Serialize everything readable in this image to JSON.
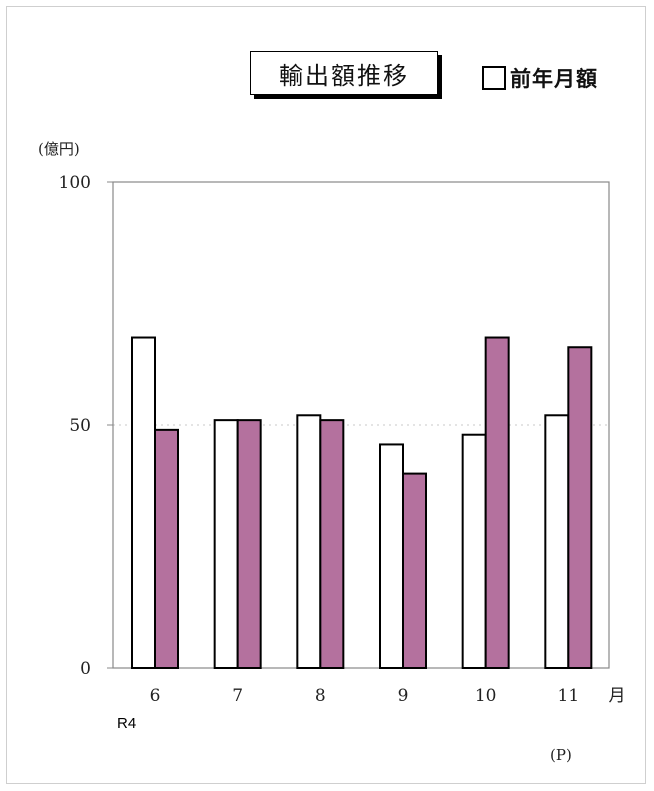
{
  "chart_data": {
    "type": "bar",
    "title": "輸出額推移",
    "ylabel": "(億円)",
    "xlabel_suffix": "月",
    "x_note": "R4",
    "footnote": "(P)",
    "categories": [
      "6",
      "7",
      "8",
      "9",
      "10",
      "11"
    ],
    "ylim": [
      0,
      100
    ],
    "yticks": [
      "0",
      "50",
      "100"
    ],
    "series": [
      {
        "name": "前年月額",
        "color": "#ffffff",
        "values": [
          68,
          51,
          52,
          46,
          48,
          52
        ]
      },
      {
        "name": "",
        "color": "#b4719e",
        "values": [
          49,
          51,
          51,
          40,
          68,
          66
        ]
      }
    ]
  }
}
